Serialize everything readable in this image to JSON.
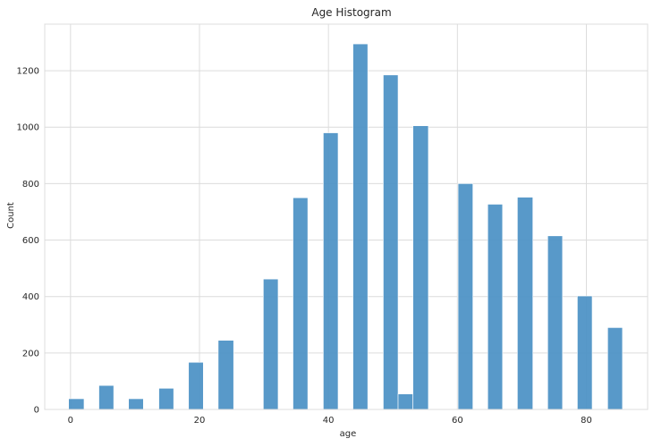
{
  "chart_data": {
    "type": "bar",
    "title": "Age Histogram",
    "xlabel": "age",
    "ylabel": "Count",
    "xlim": [
      -4,
      89.5
    ],
    "ylim": [
      0,
      1365
    ],
    "xticks": [
      0,
      20,
      40,
      60,
      80
    ],
    "yticks": [
      0,
      200,
      400,
      600,
      800,
      1000,
      1200
    ],
    "grid": true,
    "bar_color": "#4a90c4",
    "bins": [
      {
        "x0": -0.3,
        "x1": 2.1,
        "value": 38
      },
      {
        "x0": 4.4,
        "x1": 6.7,
        "value": 85
      },
      {
        "x0": 9.0,
        "x1": 11.3,
        "value": 38
      },
      {
        "x0": 13.7,
        "x1": 16.0,
        "value": 75
      },
      {
        "x0": 18.3,
        "x1": 20.6,
        "value": 167
      },
      {
        "x0": 22.9,
        "x1": 25.3,
        "value": 245
      },
      {
        "x0": 29.9,
        "x1": 32.2,
        "value": 462
      },
      {
        "x0": 34.5,
        "x1": 36.8,
        "value": 750
      },
      {
        "x0": 39.2,
        "x1": 41.5,
        "value": 980
      },
      {
        "x0": 43.8,
        "x1": 46.1,
        "value": 1295
      },
      {
        "x0": 48.5,
        "x1": 50.8,
        "value": 1185
      },
      {
        "x0": 50.8,
        "x1": 53.1,
        "value": 55
      },
      {
        "x0": 53.1,
        "x1": 55.5,
        "value": 1005
      },
      {
        "x0": 60.1,
        "x1": 62.4,
        "value": 800
      },
      {
        "x0": 64.7,
        "x1": 67.0,
        "value": 727
      },
      {
        "x0": 69.3,
        "x1": 71.7,
        "value": 752
      },
      {
        "x0": 74.0,
        "x1": 76.3,
        "value": 615
      },
      {
        "x0": 78.6,
        "x1": 80.9,
        "value": 402
      },
      {
        "x0": 83.3,
        "x1": 85.6,
        "value": 290
      }
    ]
  }
}
